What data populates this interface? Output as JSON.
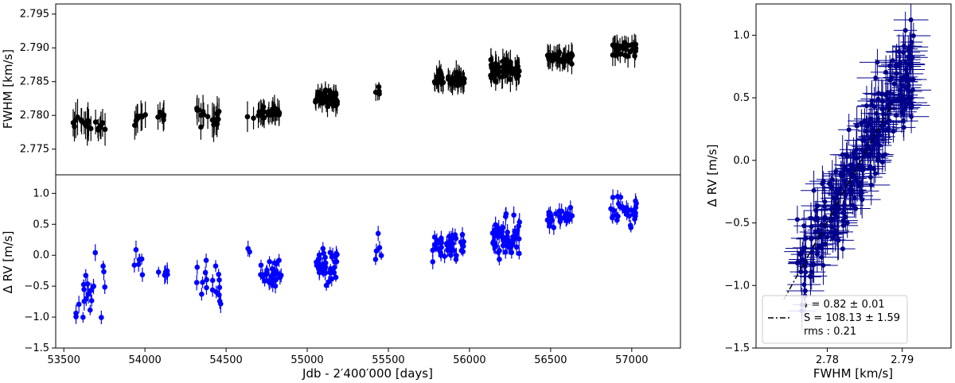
{
  "chart_data": [
    {
      "id": "fwhm_time",
      "type": "scatter",
      "xlabel": "",
      "ylabel": "FWHM [km/s]",
      "xlim": [
        53450,
        57300
      ],
      "ylim": [
        2.7712,
        2.7965
      ],
      "xticks": [],
      "yticks": [
        2.775,
        2.78,
        2.785,
        2.79,
        2.795
      ],
      "ytick_labels": [
        "2.775",
        "2.780",
        "2.785",
        "2.790",
        "2.795"
      ],
      "grid": false,
      "series": [
        {
          "marker_color": "#000000",
          "errorbar_color": "#000000",
          "clusters": [
            {
              "x": 53620,
              "x_spread": 80,
              "y": 2.779,
              "y_spread": 0.001,
              "n": 14,
              "err": 0.0022
            },
            {
              "x": 53730,
              "x_spread": 40,
              "y": 2.7785,
              "y_spread": 0.0008,
              "n": 7,
              "err": 0.002
            },
            {
              "x": 53970,
              "x_spread": 40,
              "y": 2.7795,
              "y_spread": 0.001,
              "n": 7,
              "err": 0.0018
            },
            {
              "x": 54100,
              "x_spread": 40,
              "y": 2.78,
              "y_spread": 0.0006,
              "n": 7,
              "err": 0.0017
            },
            {
              "x": 54360,
              "x_spread": 50,
              "y": 2.78,
              "y_spread": 0.0012,
              "n": 8,
              "err": 0.002
            },
            {
              "x": 54440,
              "x_spread": 30,
              "y": 2.7795,
              "y_spread": 0.001,
              "n": 10,
              "err": 0.002
            },
            {
              "x": 54650,
              "x_spread": 20,
              "y": 2.78,
              "y_spread": 0.0003,
              "n": 2,
              "err": 0.0018
            },
            {
              "x": 54760,
              "x_spread": 70,
              "y": 2.7805,
              "y_spread": 0.0008,
              "n": 28,
              "err": 0.0015
            },
            {
              "x": 55120,
              "x_spread": 70,
              "y": 2.7825,
              "y_spread": 0.0008,
              "n": 40,
              "err": 0.0013
            },
            {
              "x": 55440,
              "x_spread": 20,
              "y": 2.7837,
              "y_spread": 0.0005,
              "n": 5,
              "err": 0.001
            },
            {
              "x": 55870,
              "x_spread": 100,
              "y": 2.7853,
              "y_spread": 0.0008,
              "n": 45,
              "err": 0.0014
            },
            {
              "x": 56220,
              "x_spread": 90,
              "y": 2.7868,
              "y_spread": 0.0012,
              "n": 60,
              "err": 0.0016
            },
            {
              "x": 56560,
              "x_spread": 80,
              "y": 2.7885,
              "y_spread": 0.0007,
              "n": 30,
              "err": 0.0014
            },
            {
              "x": 56950,
              "x_spread": 80,
              "y": 2.7898,
              "y_spread": 0.0008,
              "n": 30,
              "err": 0.0014
            }
          ]
        }
      ]
    },
    {
      "id": "drv_time",
      "type": "scatter",
      "xlabel": "Jdb - 2′400′000 [days]",
      "ylabel": "Δ RV [m/s]",
      "xlim": [
        53450,
        57300
      ],
      "ylim": [
        -1.5,
        1.3
      ],
      "xticks": [
        53500,
        54000,
        54500,
        55000,
        55500,
        56000,
        56500,
        57000
      ],
      "xtick_labels": [
        "53500",
        "54000",
        "54500",
        "55000",
        "55500",
        "56000",
        "56500",
        "57000"
      ],
      "yticks": [
        -1.5,
        -1.0,
        -0.5,
        0.0,
        0.5,
        1.0
      ],
      "ytick_labels": [
        "−1.5",
        "−1.0",
        "−0.5",
        "0.0",
        "0.5",
        "1.0"
      ],
      "grid": false,
      "series": [
        {
          "marker_color": "#0000ff",
          "errorbar_color": "#0000ff",
          "clusters": [
            {
              "x": 53620,
              "x_spread": 70,
              "y": -0.7,
              "y_spread": 0.3,
              "n": 14,
              "err": 0.12
            },
            {
              "x": 53720,
              "x_spread": 40,
              "y": -0.6,
              "y_spread": 0.4,
              "n": 7,
              "err": 0.12
            },
            {
              "x": 53970,
              "x_spread": 40,
              "y": -0.2,
              "y_spread": 0.2,
              "n": 7,
              "err": 0.12
            },
            {
              "x": 54100,
              "x_spread": 40,
              "y": -0.3,
              "y_spread": 0.1,
              "n": 7,
              "err": 0.12
            },
            {
              "x": 54360,
              "x_spread": 50,
              "y": -0.3,
              "y_spread": 0.3,
              "n": 8,
              "err": 0.12
            },
            {
              "x": 54440,
              "x_spread": 30,
              "y": -0.5,
              "y_spread": 0.3,
              "n": 10,
              "err": 0.12
            },
            {
              "x": 54650,
              "x_spread": 20,
              "y": 0.1,
              "y_spread": 0.2,
              "n": 2,
              "err": 0.12
            },
            {
              "x": 54770,
              "x_spread": 70,
              "y": -0.3,
              "y_spread": 0.2,
              "n": 28,
              "err": 0.1
            },
            {
              "x": 55120,
              "x_spread": 70,
              "y": -0.2,
              "y_spread": 0.25,
              "n": 40,
              "err": 0.1
            },
            {
              "x": 55440,
              "x_spread": 20,
              "y": 0.1,
              "y_spread": 0.3,
              "n": 5,
              "err": 0.1
            },
            {
              "x": 55870,
              "x_spread": 100,
              "y": 0.15,
              "y_spread": 0.2,
              "n": 45,
              "err": 0.1
            },
            {
              "x": 56220,
              "x_spread": 90,
              "y": 0.25,
              "y_spread": 0.25,
              "n": 60,
              "err": 0.12
            },
            {
              "x": 56560,
              "x_spread": 80,
              "y": 0.6,
              "y_spread": 0.15,
              "n": 30,
              "err": 0.1
            },
            {
              "x": 56950,
              "x_spread": 80,
              "y": 0.7,
              "y_spread": 0.2,
              "n": 30,
              "err": 0.1
            }
          ]
        }
      ]
    },
    {
      "id": "drv_vs_fwhm",
      "type": "scatter",
      "xlabel": "FWHM [km/s]",
      "ylabel": "Δ RV [m/s]",
      "xlim": [
        2.7705,
        2.7965
      ],
      "ylim": [
        -1.5,
        1.25
      ],
      "xticks": [
        2.78,
        2.79
      ],
      "xtick_labels": [
        "2.78",
        "2.79"
      ],
      "yticks": [
        -1.5,
        -1.0,
        -0.5,
        0.0,
        0.5,
        1.0
      ],
      "ytick_labels": [
        "−1.5",
        "−1.0",
        "−0.5",
        "0.0",
        "0.5",
        "1.0"
      ],
      "grid": false,
      "series": [
        {
          "marker_color": "#00008b",
          "errorbar_color": "#00008b",
          "n": 300,
          "x_range": [
            2.7755,
            2.7915
          ],
          "y_scatter": 0.2,
          "x_err": 0.0018,
          "y_err": 0.12
        }
      ],
      "fit": {
        "slope": 108.13,
        "intercept_at_x": 2.7845,
        "y_at_intercept": 0.0,
        "x_range": [
          2.7742,
          2.7888
        ],
        "style": "dash-dot",
        "color": "#000000"
      },
      "legend": {
        "placement": "lower-left",
        "lines": [
          "𝓇 = 0.82 ± 0.01",
          "S = 108.13 ± 1.59",
          "rms : 0.21"
        ]
      }
    }
  ]
}
